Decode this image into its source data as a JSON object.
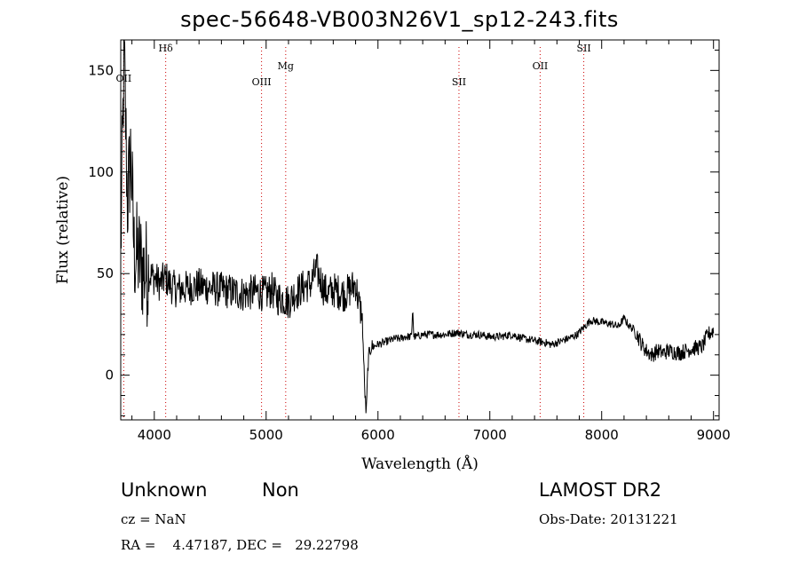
{
  "chart_data": {
    "type": "line",
    "title": "spec-56648-VB003N26V1_sp12-243.fits",
    "xlabel": "Wavelength (Å)",
    "ylabel": "Flux (relative)",
    "xlim": [
      3700,
      9050
    ],
    "ylim": [
      -22,
      165
    ],
    "xticks": [
      4000,
      5000,
      6000,
      7000,
      8000,
      9000
    ],
    "yticks": [
      0,
      50,
      100,
      150
    ],
    "grid": false,
    "line_color": "#000000",
    "marker_line_color": "#cc0000",
    "lines": [
      {
        "label": "OII",
        "x": 3727
      },
      {
        "label": "Hδ",
        "x": 4102
      },
      {
        "label": "OIII",
        "x": 4959
      },
      {
        "label": "Mg",
        "x": 5175
      },
      {
        "label": "SII",
        "x": 6724
      },
      {
        "label": "OII",
        "x": 7450
      },
      {
        "label": "SII",
        "x": 7840
      }
    ],
    "series": [
      {
        "x": [
          3700,
          3730,
          3760,
          3790,
          3820,
          3860,
          3900,
          3950,
          4000,
          4050,
          4100,
          4150,
          4200,
          4300,
          4400,
          4500,
          4600,
          4700,
          4800,
          4900,
          5000,
          5050,
          5100,
          5150,
          5200,
          5250,
          5300,
          5350,
          5400,
          5450,
          5480,
          5520,
          5560,
          5600,
          5650,
          5700,
          5750,
          5800,
          5830,
          5860,
          5880,
          5895,
          5910,
          5925,
          5940,
          5960,
          5990,
          6050,
          6100,
          6150,
          6200,
          6250,
          6300,
          6310,
          6320,
          6350,
          6400,
          6500,
          6600,
          6700,
          6800,
          6900,
          7000,
          7100,
          7200,
          7300,
          7400,
          7500,
          7550,
          7600,
          7700,
          7780,
          7850,
          7900,
          8000,
          8100,
          8150,
          8200,
          8250,
          8300,
          8360,
          8400,
          8450,
          8500,
          8550,
          8600,
          8700,
          8800,
          8900,
          8950,
          9000
        ],
        "values": [
          60,
          160,
          85,
          110,
          60,
          58,
          52,
          50,
          48,
          45,
          48,
          44,
          42,
          43,
          44,
          43,
          42,
          41,
          40,
          41,
          40,
          42,
          38,
          38,
          36,
          40,
          42,
          44,
          45,
          52,
          48,
          42,
          40,
          42,
          41,
          40,
          42,
          45,
          35,
          28,
          -5,
          -20,
          5,
          12,
          14,
          14,
          15,
          16,
          17,
          18,
          18,
          19,
          19,
          34,
          19,
          19,
          20,
          20,
          20,
          21,
          20,
          20,
          19,
          19,
          20,
          18,
          17,
          16,
          15,
          16,
          18,
          20,
          24,
          27,
          26,
          25,
          24,
          28,
          24,
          22,
          15,
          12,
          10,
          12,
          11,
          12,
          11,
          13,
          14,
          20,
          22
        ]
      }
    ]
  },
  "info": {
    "class_label": "Unknown",
    "subclass_label": "Non",
    "survey_label": "LAMOST DR2",
    "cz_text": "cz = NaN",
    "obs_date_text": "Obs-Date: 20131221",
    "radec_text": "RA =    4.47187, DEC =   29.22798"
  }
}
